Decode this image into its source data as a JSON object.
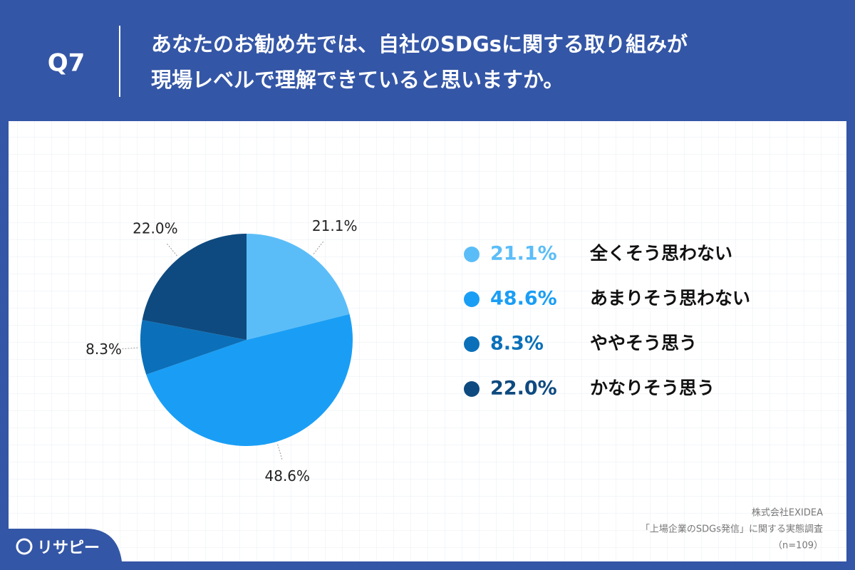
{
  "question": "Q7",
  "chart_data": {
    "type": "pie",
    "title": [
      "あなたのお勧め先では、自社のSDGsに関する取り組みが",
      "現場レベルで理解できていると思いますか。"
    ],
    "categories": [
      "全くそう思わない",
      "あまりそう思わない",
      "ややそう思う",
      "かなりそう思う"
    ],
    "values": [
      21.1,
      48.6,
      8.3,
      22.0
    ],
    "value_labels": [
      "21.1%",
      "48.6%",
      "8.3%",
      "22.0%"
    ],
    "colors": [
      "#5bbdf8",
      "#1a9ef5",
      "#0b70b9",
      "#0e4a7f"
    ]
  },
  "source": [
    "株式会社EXIDEA",
    "「上場企業のSDGs発信」に関する実態調査",
    "（n=109）"
  ],
  "logo": "リサピー"
}
